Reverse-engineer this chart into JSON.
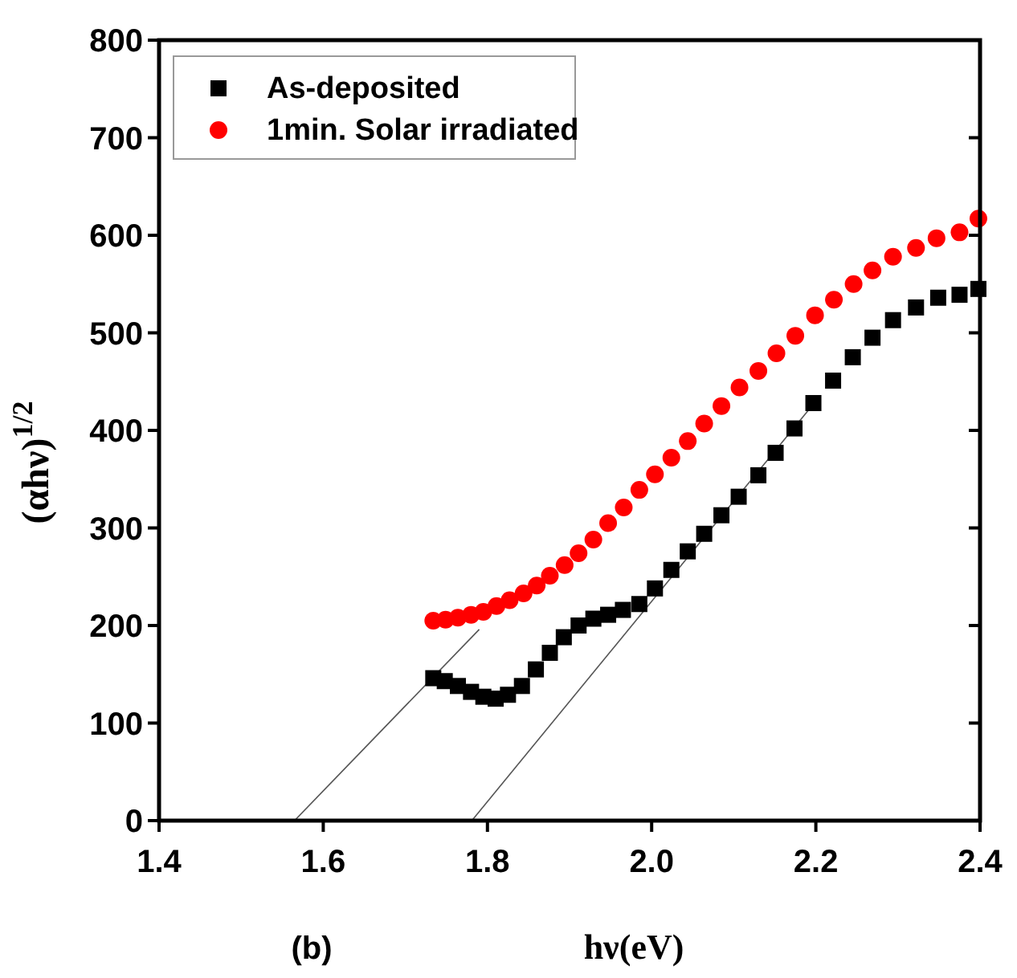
{
  "chart_data": {
    "type": "scatter",
    "xlabel": "hν(eV)",
    "ylabel": "(αhν)$^{1/2}$",
    "annotations": [
      "(b)"
    ],
    "xlim": [
      1.4,
      2.4
    ],
    "ylim": [
      0,
      800
    ],
    "xticks": [
      {
        "value": 1.4,
        "label": "1.4"
      },
      {
        "value": 1.6,
        "label": "1.6"
      },
      {
        "value": 1.8,
        "label": "1.8"
      },
      {
        "value": 2.0,
        "label": "2.0"
      },
      {
        "value": 2.2,
        "label": "2.2"
      },
      {
        "value": 2.4,
        "label": "2.4"
      }
    ],
    "yticks": [
      0,
      100,
      200,
      300,
      400,
      500,
      600,
      700,
      800
    ],
    "legend": "top left",
    "grid": false,
    "series": [
      {
        "name": "As-deposited",
        "color": "#000000",
        "marker": "square",
        "x": [
          1.734,
          1.748,
          1.764,
          1.78,
          1.795,
          1.81,
          1.825,
          1.842,
          1.859,
          1.876,
          1.893,
          1.911,
          1.929,
          1.947,
          1.965,
          1.985,
          2.004,
          2.024,
          2.044,
          2.064,
          2.085,
          2.106,
          2.13,
          2.151,
          2.174,
          2.197,
          2.221,
          2.245,
          2.269,
          2.294,
          2.322,
          2.349,
          2.375,
          2.398
        ],
        "values": [
          146,
          143,
          138,
          132,
          127,
          125,
          129,
          138,
          155,
          172,
          188,
          200,
          207,
          211,
          216,
          222,
          238,
          257,
          276,
          294,
          313,
          332,
          354,
          377,
          402,
          428,
          451,
          475,
          495,
          513,
          526,
          536,
          539,
          545
        ]
      },
      {
        "name": "1min. Solar irradiated",
        "color": "#ff0000",
        "marker": "circle",
        "x": [
          1.734,
          1.749,
          1.764,
          1.78,
          1.795,
          1.811,
          1.827,
          1.844,
          1.86,
          1.876,
          1.894,
          1.911,
          1.929,
          1.947,
          1.966,
          1.985,
          2.004,
          2.024,
          2.044,
          2.064,
          2.085,
          2.107,
          2.13,
          2.152,
          2.175,
          2.199,
          2.222,
          2.246,
          2.269,
          2.294,
          2.322,
          2.347,
          2.375,
          2.398
        ],
        "values": [
          205,
          206,
          208,
          211,
          214,
          220,
          226,
          233,
          241,
          251,
          262,
          274,
          288,
          305,
          321,
          339,
          355,
          372,
          389,
          407,
          425,
          444,
          461,
          479,
          497,
          518,
          534,
          550,
          564,
          578,
          587,
          597,
          603,
          617
        ]
      },
      {
        "type": "line",
        "color": "#555555",
        "marker": "none",
        "x": [
          1.565,
          1.79
        ],
        "values": [
          0,
          196
        ]
      },
      {
        "type": "line",
        "color": "#555555",
        "marker": "none",
        "x": [
          1.781,
          2.2
        ],
        "values": [
          0,
          430
        ]
      }
    ]
  }
}
